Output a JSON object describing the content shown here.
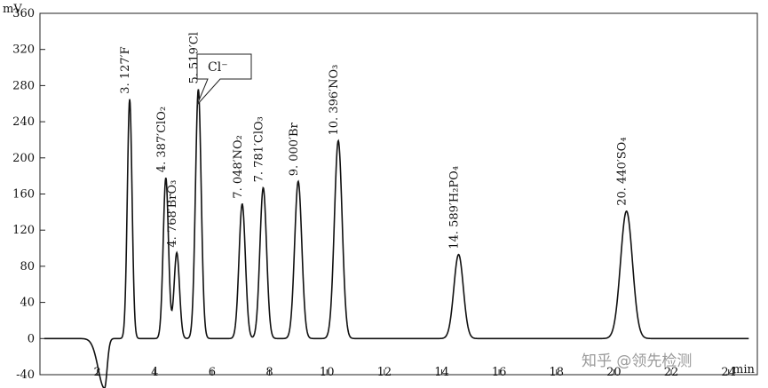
{
  "chart_data": {
    "type": "line",
    "ylabel": "mV",
    "xlabel": "min",
    "xlim": [
      0,
      25
    ],
    "ylim": [
      -40,
      360
    ],
    "x_ticks": [
      2,
      4,
      6,
      8,
      10,
      12,
      14,
      16,
      18,
      20,
      22,
      24
    ],
    "y_ticks": [
      -40,
      0,
      40,
      80,
      120,
      160,
      200,
      240,
      280,
      320,
      360
    ],
    "grid": false,
    "baseline_dip": {
      "x": 2.25,
      "y": -55
    },
    "peaks": [
      {
        "label": "3. 127′F",
        "time": 3.127,
        "height": 265
      },
      {
        "label": "4. 387′ClO₂",
        "time": 4.387,
        "height": 178
      },
      {
        "label": "4. 768′BrO₃",
        "time": 4.768,
        "height": 95
      },
      {
        "label": "5. 519′Cl",
        "time": 5.519,
        "height": 276
      },
      {
        "label": "7. 048′NO₂",
        "time": 7.048,
        "height": 149
      },
      {
        "label": "7. 781′ClO₃",
        "time": 7.781,
        "height": 167
      },
      {
        "label": "9. 000′Br",
        "time": 9.0,
        "height": 174
      },
      {
        "label": "10. 396′NO₃",
        "time": 10.396,
        "height": 219
      },
      {
        "label": "14. 589′H₂PO₄",
        "time": 14.589,
        "height": 93
      },
      {
        "label": "20. 440′SO₄",
        "time": 20.44,
        "height": 141
      }
    ],
    "annotations": [
      {
        "text": "Cl⁻",
        "target_peak": "5. 519′Cl"
      }
    ]
  },
  "watermark": "知乎 @领先检测"
}
